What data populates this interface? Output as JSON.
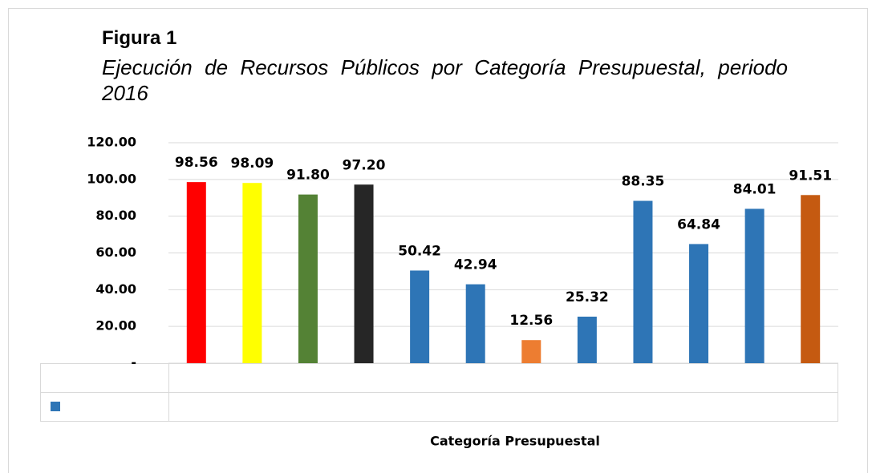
{
  "chart_data": {
    "type": "bar",
    "title": "Figura 1",
    "subtitle": "Ejecución de Recursos Públicos por Categoría Presupuestal, periodo 2016",
    "x_label": "Categoría Presupuestal",
    "categories": [
      null,
      null,
      null,
      null,
      null,
      null,
      null,
      null,
      null,
      null,
      null,
      null
    ],
    "values": [
      98.56,
      98.09,
      91.8,
      97.2,
      50.42,
      42.94,
      12.56,
      25.32,
      88.35,
      64.84,
      84.01,
      91.51
    ],
    "value_labels": [
      "98.56",
      "98.09",
      "91.80",
      "97.20",
      "50.42",
      "42.94",
      "12.56",
      "25.32",
      "88.35",
      "64.84",
      "84.01",
      "91.51"
    ],
    "colors": [
      "#ff0000",
      "#ffff00",
      "#548235",
      "#262626",
      "#2e75b6",
      "#2e75b6",
      "#ed7d31",
      "#2e75b6",
      "#2e75b6",
      "#2e75b6",
      "#2e75b6",
      "#c55a11"
    ],
    "ylim": [
      0,
      120
    ],
    "yticks": [
      {
        "value": 0,
        "label": "-"
      },
      {
        "value": 20,
        "label": "20.00"
      },
      {
        "value": 40,
        "label": "40.00"
      },
      {
        "value": 60,
        "label": "60.00"
      },
      {
        "value": 80,
        "label": "80.00"
      },
      {
        "value": 100,
        "label": "100.00"
      },
      {
        "value": 120,
        "label": "120.00"
      }
    ],
    "grid": true
  }
}
